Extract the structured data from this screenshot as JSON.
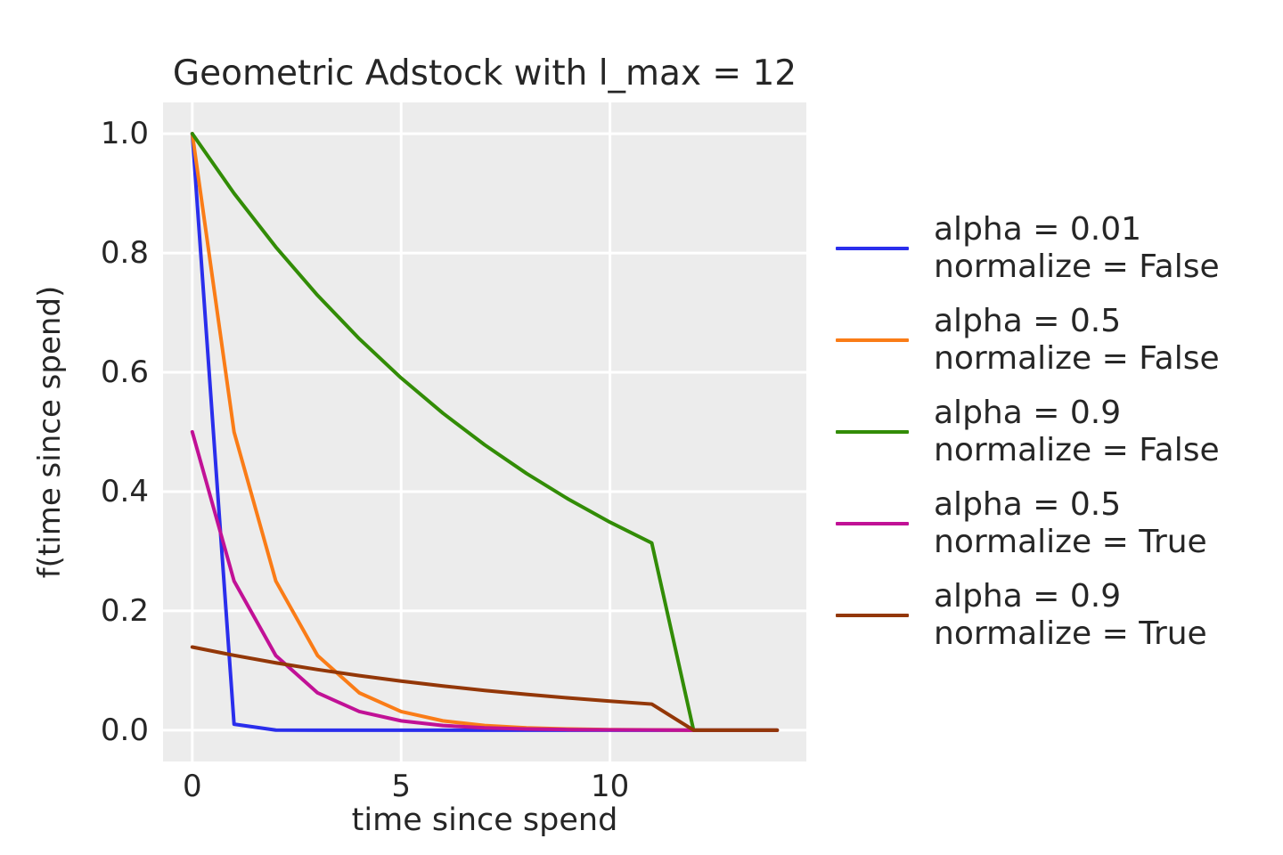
{
  "chart_data": {
    "type": "line",
    "title": "Geometric Adstock with l_max = 12",
    "xlabel": "time since spend",
    "ylabel": "f(time since spend)",
    "grid": true,
    "legend_position": "right-outside",
    "plot_bg_color": "#ececec",
    "grid_color": "#ffffff",
    "text_color": "#262626",
    "xlim": [
      -0.7,
      14.7
    ],
    "ylim": [
      -0.0525,
      1.0525
    ],
    "xticks": [
      "0",
      "5",
      "10"
    ],
    "yticks": [
      "0.0",
      "0.2",
      "0.4",
      "0.6",
      "0.8",
      "1.0"
    ],
    "x": [
      0,
      1,
      2,
      3,
      4,
      5,
      6,
      7,
      8,
      9,
      10,
      11,
      12,
      13,
      14
    ],
    "series": [
      {
        "label_line1": "alpha = 0.01",
        "label_line2": "normalize = False",
        "color": "#2a2eec",
        "values": [
          1.0,
          0.01,
          0.0001,
          1e-06,
          0,
          0,
          0,
          0,
          0,
          0,
          0,
          0,
          0,
          0,
          0
        ]
      },
      {
        "label_line1": "alpha = 0.5",
        "label_line2": "normalize = False",
        "color": "#fa7c17",
        "values": [
          1.0,
          0.5,
          0.25,
          0.125,
          0.0625,
          0.03125,
          0.015625,
          0.007813,
          0.003906,
          0.001953,
          0.000977,
          0.000488,
          0,
          0,
          0
        ]
      },
      {
        "label_line1": "alpha = 0.9",
        "label_line2": "normalize = False",
        "color": "#328c06",
        "values": [
          1.0,
          0.9,
          0.81,
          0.729,
          0.6561,
          0.59049,
          0.531441,
          0.478297,
          0.430467,
          0.38742,
          0.348678,
          0.313811,
          0,
          0,
          0
        ]
      },
      {
        "label_line1": "alpha = 0.5",
        "label_line2": "normalize = True",
        "color": "#c11196",
        "values": [
          0.500122,
          0.250061,
          0.125031,
          0.062515,
          0.031258,
          0.015629,
          0.007814,
          0.003907,
          0.001954,
          0.000977,
          0.000488,
          0.000244,
          0,
          0,
          0
        ]
      },
      {
        "label_line1": "alpha = 0.9",
        "label_line2": "normalize = True",
        "color": "#933708",
        "values": [
          0.139359,
          0.125423,
          0.112881,
          0.101593,
          0.091434,
          0.08229,
          0.074061,
          0.066655,
          0.05999,
          0.053991,
          0.048592,
          0.043732,
          0,
          0,
          0
        ]
      }
    ]
  }
}
